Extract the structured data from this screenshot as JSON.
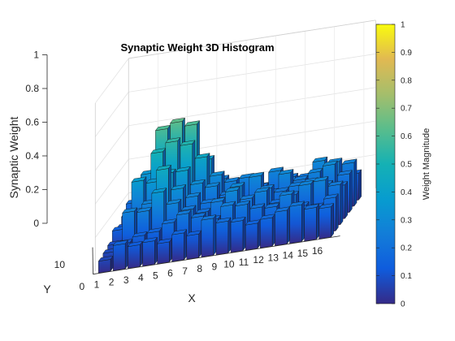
{
  "chart_data": {
    "type": "bar3d",
    "title": "Synaptic Weight 3D Histogram",
    "xlabel": "X",
    "ylabel": "Y",
    "zlabel": "Synaptic Weight",
    "colorbar_label": "Weight Magnitude",
    "x_ticks": [
      "0",
      "1",
      "2",
      "3",
      "4",
      "5",
      "6",
      "7",
      "8",
      "9",
      "10",
      "11",
      "12",
      "13",
      "14",
      "15",
      "16"
    ],
    "y_ticks": [
      "10"
    ],
    "z_ticks": [
      "0",
      "0.2",
      "0.4",
      "0.6",
      "0.8",
      "1"
    ],
    "colorbar_ticks": [
      "0",
      "0.1",
      "0.2",
      "0.3",
      "0.4",
      "0.5",
      "0.6",
      "0.7",
      "0.8",
      "0.9",
      "1"
    ],
    "zlim": [
      0,
      1
    ],
    "clim": [
      0,
      1
    ],
    "colormap": "parula",
    "grid": true,
    "rows": [
      [
        0.19,
        0.35,
        0.6,
        0.63,
        0.6,
        0.38,
        0.25,
        0.22,
        0.2,
        0.17,
        0.15,
        0.18,
        0.16,
        0.15,
        0.14,
        0.16
      ],
      [
        0.15,
        0.28,
        0.5,
        0.55,
        0.52,
        0.43,
        0.31,
        0.26,
        0.27,
        0.2,
        0.28,
        0.23,
        0.22,
        0.3,
        0.28,
        0.26
      ],
      [
        0.12,
        0.38,
        0.36,
        0.4,
        0.4,
        0.31,
        0.28,
        0.22,
        0.16,
        0.3,
        0.19,
        0.29,
        0.24,
        0.27,
        0.3,
        0.23
      ],
      [
        0.14,
        0.23,
        0.27,
        0.46,
        0.33,
        0.27,
        0.22,
        0.22,
        0.29,
        0.2,
        0.25,
        0.22,
        0.24,
        0.25,
        0.22,
        0.2
      ],
      [
        0.09,
        0.27,
        0.26,
        0.36,
        0.28,
        0.23,
        0.2,
        0.25,
        0.3,
        0.24,
        0.27,
        0.19,
        0.22,
        0.27,
        0.28,
        0.24
      ],
      [
        0.08,
        0.12,
        0.15,
        0.16,
        0.2,
        0.24,
        0.21,
        0.18,
        0.25,
        0.24,
        0.21,
        0.2,
        0.26,
        0.18,
        0.16,
        0.2
      ],
      [
        0.07,
        0.15,
        0.13,
        0.14,
        0.12,
        0.16,
        0.14,
        0.22,
        0.19,
        0.18,
        0.15,
        0.17,
        0.2,
        0.22,
        0.19,
        0.18
      ]
    ]
  }
}
